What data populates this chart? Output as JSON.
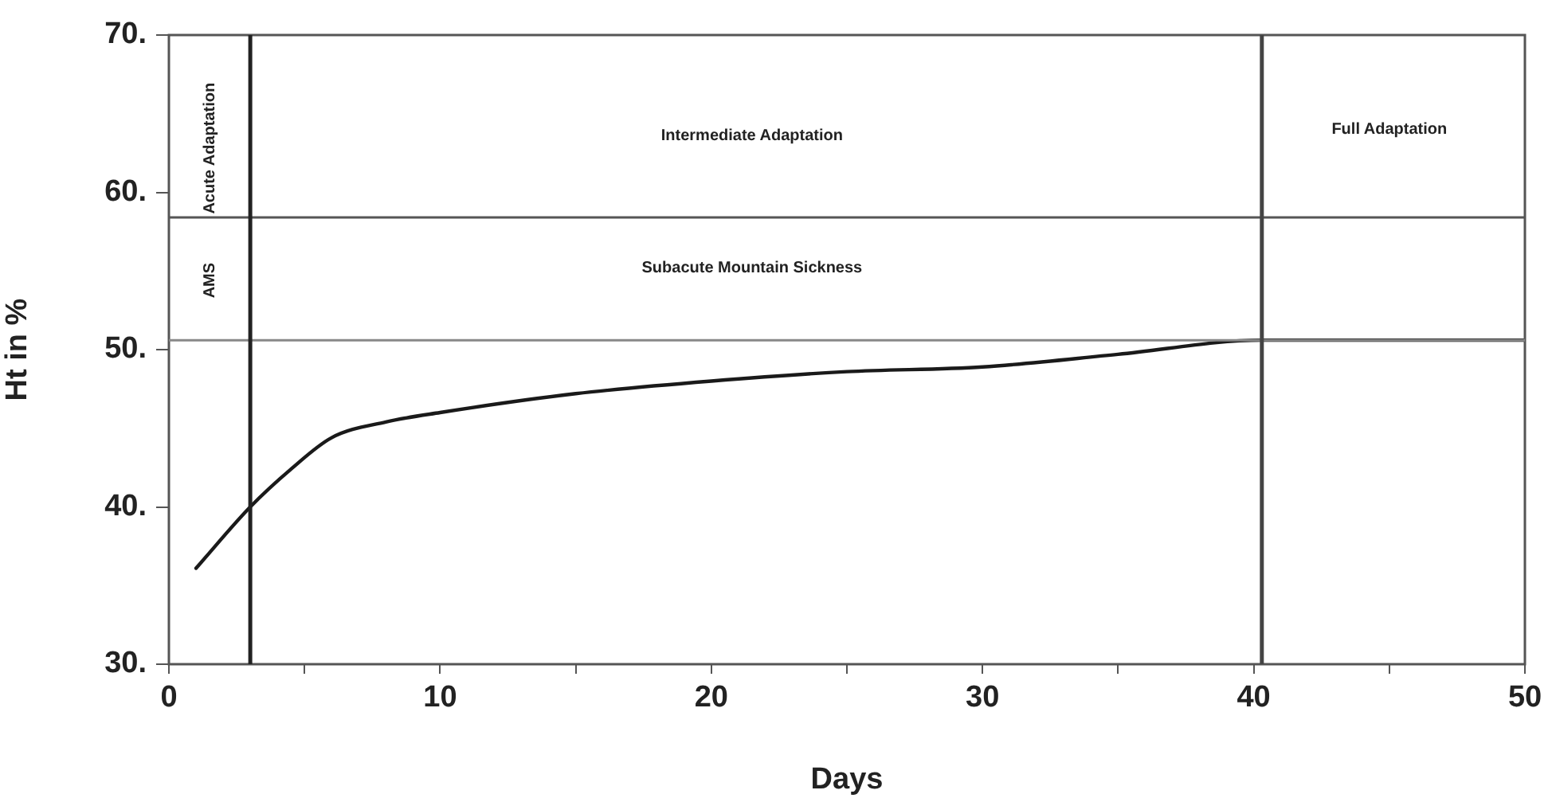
{
  "chart_data": {
    "type": "line",
    "xlabel": "Days",
    "ylabel": "Ht in %",
    "x": [
      1,
      3,
      4.5,
      6,
      8,
      10,
      15,
      20,
      25,
      30,
      35,
      40.3,
      50
    ],
    "series": [
      {
        "color": "#1a1a1a",
        "values": [
          36.1,
          40.0,
          42.4,
          44.4,
          45.4,
          46.0,
          47.2,
          48.0,
          48.6,
          48.9,
          49.7,
          50.6,
          50.6
        ]
      }
    ],
    "xlim": [
      0,
      50
    ],
    "xticks": [
      0,
      {
        "value": 5,
        "label": null
      },
      10,
      {
        "value": 15,
        "label": null
      },
      20,
      {
        "value": 25,
        "label": null
      },
      30,
      {
        "value": 35,
        "label": null
      },
      40,
      {
        "value": 45,
        "label": null
      },
      50
    ],
    "ylim": [
      30,
      70
    ],
    "yticks": [
      {
        "value": 30,
        "label": "30."
      },
      {
        "value": 40,
        "label": "40."
      },
      {
        "value": 50,
        "label": "50."
      },
      {
        "value": 60,
        "label": "60."
      },
      {
        "value": 70,
        "label": "70."
      }
    ],
    "ref_lines": [
      {
        "axis": "y",
        "value": 58.4,
        "color": "#555555"
      },
      {
        "axis": "y",
        "value": 50.6,
        "color": "#888888"
      },
      {
        "axis": "x",
        "value": 3,
        "color": "#222222"
      },
      {
        "axis": "x",
        "value": 40.3,
        "color": "#444444"
      }
    ],
    "annotations": [
      "Acute Adaptation",
      "AMS",
      "Intermediate Adaptation",
      "Subacute Mountain Sickness",
      "Full Adaptation"
    ],
    "grid": false,
    "legend": false,
    "marker": "none",
    "line_style": "solid"
  }
}
